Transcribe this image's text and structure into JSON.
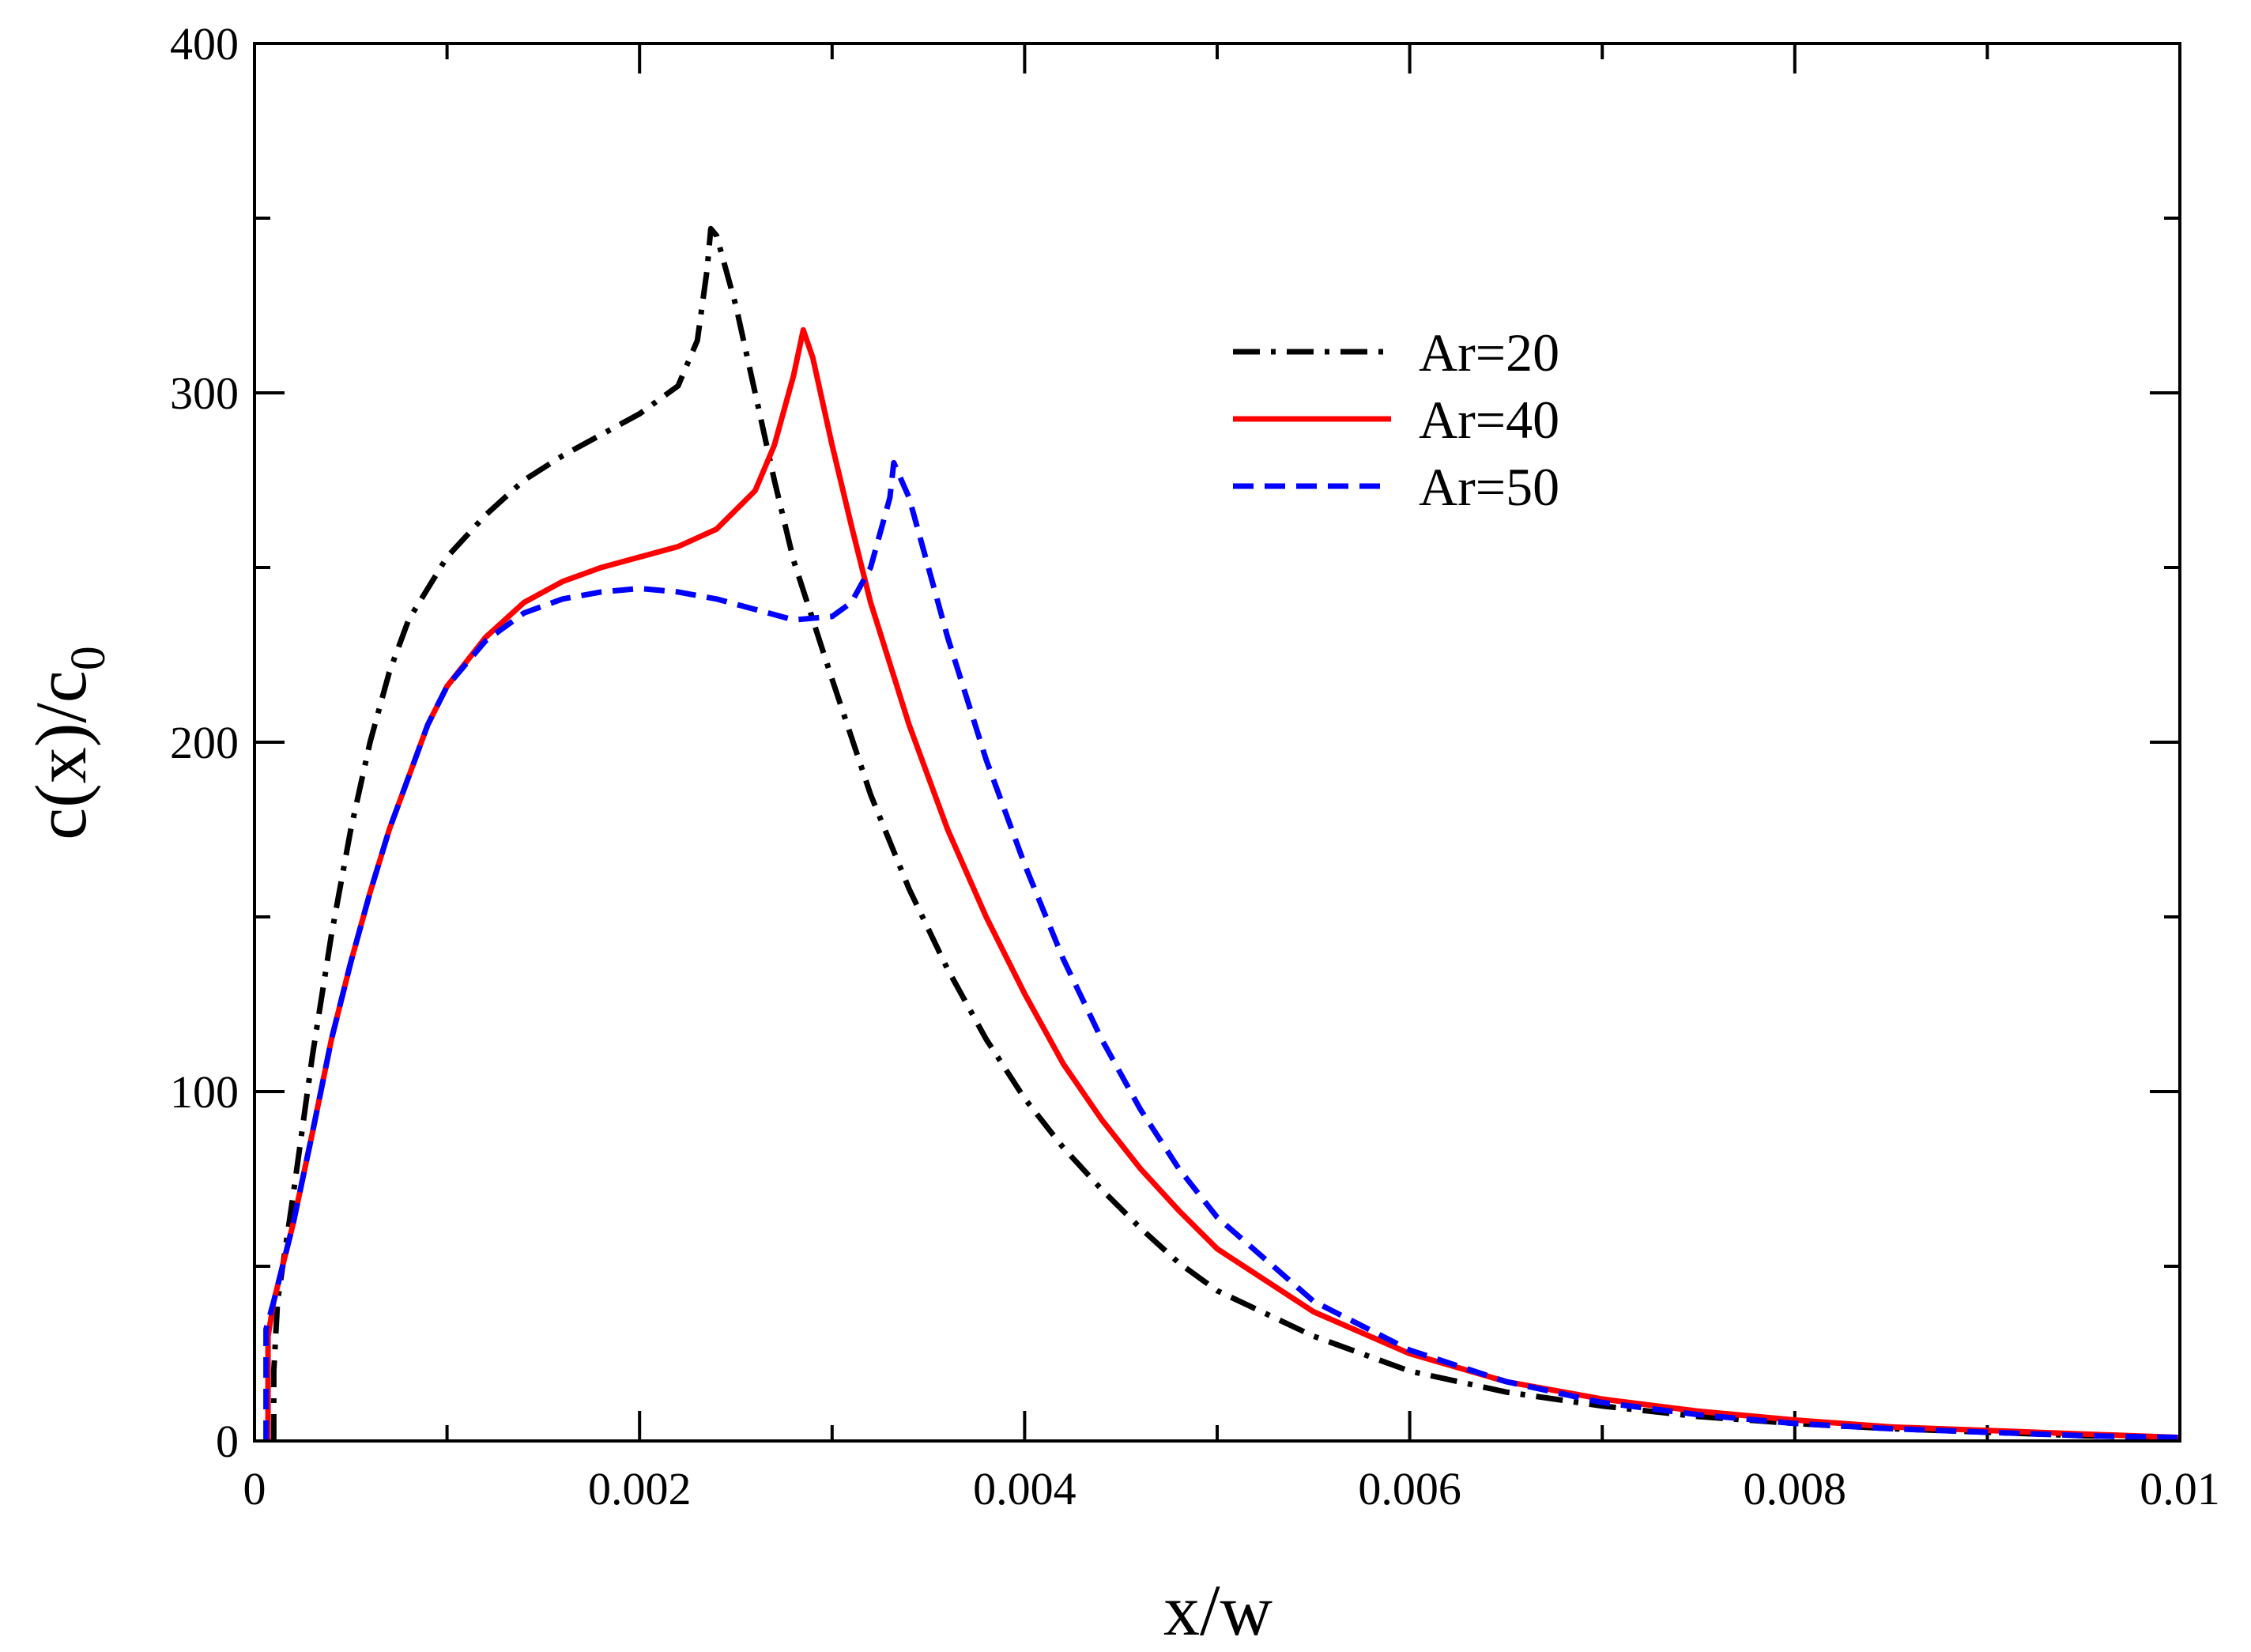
{
  "chart_data": {
    "type": "line",
    "title": "",
    "xlabel": "x/w",
    "ylabel": {
      "main": "c(x)/c",
      "subscript": "0"
    },
    "xlim": [
      0,
      0.01
    ],
    "ylim": [
      0,
      400
    ],
    "x_major_ticks": [
      0,
      0.002,
      0.004,
      0.006,
      0.008,
      0.01
    ],
    "x_tick_labels": [
      "0",
      "0.002",
      "0.004",
      "0.006",
      "0.008",
      "0.01"
    ],
    "x_minor_step": 0.001,
    "y_major_ticks": [
      0,
      100,
      200,
      300,
      400
    ],
    "y_tick_labels": [
      "0",
      "100",
      "200",
      "300",
      "400"
    ],
    "y_minor_step": 50,
    "grid": false,
    "legend_position": "top-right-inner",
    "series": [
      {
        "name": "Ar=20",
        "color": "#000000",
        "style": "dash-dot",
        "points": [
          [
            0.0001,
            0
          ],
          [
            0.0001,
            20
          ],
          [
            0.00012,
            40
          ],
          [
            0.0002,
            70
          ],
          [
            0.0003,
            110
          ],
          [
            0.0004,
            145
          ],
          [
            0.0005,
            175
          ],
          [
            0.0006,
            200
          ],
          [
            0.0007,
            220
          ],
          [
            0.0008,
            235
          ],
          [
            0.001,
            253
          ],
          [
            0.0012,
            265
          ],
          [
            0.0014,
            275
          ],
          [
            0.0016,
            282
          ],
          [
            0.0018,
            288
          ],
          [
            0.002,
            294
          ],
          [
            0.0022,
            302
          ],
          [
            0.0023,
            315
          ],
          [
            0.00235,
            335
          ],
          [
            0.00237,
            347
          ],
          [
            0.0024,
            345
          ],
          [
            0.0025,
            325
          ],
          [
            0.0026,
            300
          ],
          [
            0.0027,
            275
          ],
          [
            0.0028,
            252
          ],
          [
            0.003,
            218
          ],
          [
            0.0032,
            185
          ],
          [
            0.0034,
            158
          ],
          [
            0.0036,
            135
          ],
          [
            0.0038,
            115
          ],
          [
            0.004,
            98
          ],
          [
            0.0042,
            84
          ],
          [
            0.0044,
            72
          ],
          [
            0.0046,
            61
          ],
          [
            0.0048,
            51
          ],
          [
            0.005,
            43
          ],
          [
            0.0055,
            30
          ],
          [
            0.006,
            20
          ],
          [
            0.0065,
            14
          ],
          [
            0.007,
            10
          ],
          [
            0.0075,
            7
          ],
          [
            0.008,
            5
          ],
          [
            0.0085,
            3.5
          ],
          [
            0.009,
            2.5
          ],
          [
            0.0095,
            1.5
          ],
          [
            0.01,
            1
          ]
        ]
      },
      {
        "name": "Ar=40",
        "color": "#ff0000",
        "style": "solid",
        "points": [
          [
            7e-05,
            0
          ],
          [
            7e-05,
            30
          ],
          [
            0.0001,
            40
          ],
          [
            0.0002,
            62
          ],
          [
            0.0003,
            88
          ],
          [
            0.0004,
            115
          ],
          [
            0.0005,
            137
          ],
          [
            0.0006,
            157
          ],
          [
            0.0007,
            175
          ],
          [
            0.0008,
            190
          ],
          [
            0.0009,
            205
          ],
          [
            0.001,
            216
          ],
          [
            0.0012,
            230
          ],
          [
            0.0014,
            240
          ],
          [
            0.0016,
            246
          ],
          [
            0.0018,
            250
          ],
          [
            0.002,
            253
          ],
          [
            0.0022,
            256
          ],
          [
            0.0024,
            261
          ],
          [
            0.0026,
            272
          ],
          [
            0.0027,
            285
          ],
          [
            0.0028,
            305
          ],
          [
            0.00285,
            318
          ],
          [
            0.0029,
            310
          ],
          [
            0.003,
            285
          ],
          [
            0.0031,
            262
          ],
          [
            0.0032,
            240
          ],
          [
            0.0034,
            205
          ],
          [
            0.0036,
            175
          ],
          [
            0.0038,
            150
          ],
          [
            0.004,
            128
          ],
          [
            0.0042,
            108
          ],
          [
            0.0044,
            92
          ],
          [
            0.0046,
            78
          ],
          [
            0.0048,
            66
          ],
          [
            0.005,
            55
          ],
          [
            0.0055,
            37
          ],
          [
            0.006,
            25
          ],
          [
            0.0065,
            17
          ],
          [
            0.007,
            12
          ],
          [
            0.0075,
            8.5
          ],
          [
            0.008,
            6
          ],
          [
            0.0085,
            4
          ],
          [
            0.009,
            3
          ],
          [
            0.0095,
            2
          ],
          [
            0.01,
            1
          ]
        ]
      },
      {
        "name": "Ar=50",
        "color": "#0000ff",
        "style": "dashed",
        "points": [
          [
            6e-05,
            0
          ],
          [
            6e-05,
            32
          ],
          [
            0.0001,
            40
          ],
          [
            0.0002,
            62
          ],
          [
            0.0003,
            88
          ],
          [
            0.0004,
            115
          ],
          [
            0.0005,
            137
          ],
          [
            0.0006,
            157
          ],
          [
            0.0007,
            175
          ],
          [
            0.0008,
            190
          ],
          [
            0.0009,
            205
          ],
          [
            0.001,
            216
          ],
          [
            0.0012,
            229
          ],
          [
            0.0014,
            237
          ],
          [
            0.0016,
            241
          ],
          [
            0.0018,
            243
          ],
          [
            0.002,
            244
          ],
          [
            0.0022,
            243
          ],
          [
            0.0024,
            241
          ],
          [
            0.0026,
            238
          ],
          [
            0.0028,
            235
          ],
          [
            0.003,
            236
          ],
          [
            0.0031,
            240
          ],
          [
            0.0032,
            250
          ],
          [
            0.0033,
            270
          ],
          [
            0.00332,
            280
          ],
          [
            0.0034,
            270
          ],
          [
            0.0035,
            250
          ],
          [
            0.0036,
            230
          ],
          [
            0.0038,
            195
          ],
          [
            0.004,
            165
          ],
          [
            0.0042,
            138
          ],
          [
            0.0044,
            115
          ],
          [
            0.0046,
            95
          ],
          [
            0.0048,
            78
          ],
          [
            0.005,
            64
          ],
          [
            0.0055,
            40
          ],
          [
            0.006,
            26
          ],
          [
            0.0065,
            17
          ],
          [
            0.007,
            11
          ],
          [
            0.0075,
            7.5
          ],
          [
            0.008,
            5
          ],
          [
            0.0085,
            3.5
          ],
          [
            0.009,
            2.5
          ],
          [
            0.0095,
            1.5
          ],
          [
            0.01,
            1
          ]
        ]
      }
    ]
  }
}
